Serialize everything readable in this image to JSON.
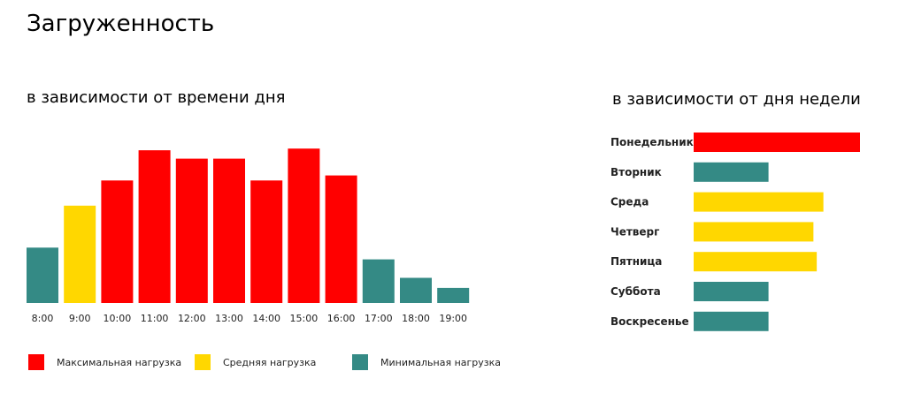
{
  "title": "Загруженность",
  "colors": {
    "max": "#ff0000",
    "mid": "#ffd700",
    "min": "#348a85"
  },
  "legend": [
    {
      "label": "Максимальная нагрузка",
      "level": "max"
    },
    {
      "label": "Средняя нагрузка",
      "level": "mid"
    },
    {
      "label": "Минимальная нагрузка",
      "level": "min"
    }
  ],
  "chart_data": [
    {
      "type": "bar",
      "title": "в зависимости от времени дня",
      "orientation": "vertical",
      "categories": [
        "8:00",
        "9:00",
        "10:00",
        "11:00",
        "12:00",
        "13:00",
        "14:00",
        "15:00",
        "16:00",
        "17:00",
        "18:00",
        "19:00"
      ],
      "values": [
        33,
        58,
        73,
        91,
        86,
        86,
        73,
        92,
        76,
        26,
        15,
        9
      ],
      "levels": [
        "min",
        "mid",
        "max",
        "max",
        "max",
        "max",
        "max",
        "max",
        "max",
        "min",
        "min",
        "min"
      ],
      "ylim": [
        0,
        100
      ]
    },
    {
      "type": "bar",
      "title": "в зависимости от дня недели",
      "orientation": "horizontal",
      "categories": [
        "Понедельник",
        "Вторник",
        "Среда",
        "Четверг",
        "Пятница",
        "Суббота",
        "Воскресенье"
      ],
      "values": [
        100,
        45,
        78,
        72,
        74,
        45,
        45
      ],
      "levels": [
        "max",
        "min",
        "mid",
        "mid",
        "mid",
        "min",
        "min"
      ],
      "xlim": [
        0,
        100
      ]
    }
  ]
}
